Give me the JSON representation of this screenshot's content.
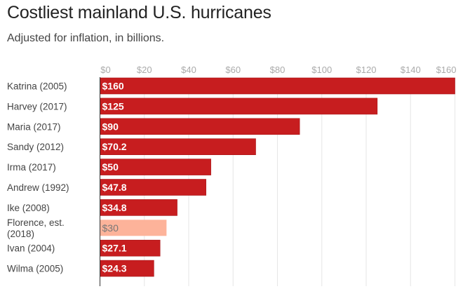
{
  "header": {
    "title": "Costliest mainland U.S. hurricanes",
    "subtitle": "Adjusted for inflation, in billions."
  },
  "chart_data": {
    "type": "bar",
    "orientation": "horizontal",
    "title": "Costliest mainland U.S. hurricanes",
    "subtitle": "Adjusted for inflation, in billions.",
    "xlabel": "",
    "ylabel": "",
    "xlim": [
      0,
      160
    ],
    "grid": true,
    "x_ticks": [
      0,
      20,
      40,
      60,
      80,
      100,
      120,
      140,
      160
    ],
    "x_tick_labels": [
      "$0",
      "$20",
      "$40",
      "$60",
      "$80",
      "$100",
      "$120",
      "$140",
      "$160"
    ],
    "categories": [
      "Katrina (2005)",
      "Harvey (2017)",
      "Maria (2017)",
      "Sandy (2012)",
      "Irma (2017)",
      "Andrew (1992)",
      "Ike (2008)",
      "Florence, est. (2018)",
      "Ivan (2004)",
      "Wilma (2005)"
    ],
    "category_lines": [
      [
        "Katrina (2005)"
      ],
      [
        "Harvey (2017)"
      ],
      [
        "Maria (2017)"
      ],
      [
        "Sandy (2012)"
      ],
      [
        "Irma (2017)"
      ],
      [
        "Andrew (1992)"
      ],
      [
        "Ike (2008)"
      ],
      [
        "Florence, est.",
        "(2018)"
      ],
      [
        "Ivan (2004)"
      ],
      [
        "Wilma (2005)"
      ]
    ],
    "values": [
      160,
      125,
      90,
      70.2,
      50,
      47.8,
      34.8,
      30,
      27.1,
      24.3
    ],
    "data_labels": [
      "$160",
      "$125",
      "$90",
      "$70.2",
      "$50",
      "$47.8",
      "$34.8",
      "$30",
      "$27.1",
      "$24.3"
    ],
    "estimated": [
      false,
      false,
      false,
      false,
      false,
      false,
      false,
      true,
      false,
      false
    ],
    "colors": {
      "bar": "#c71d1f",
      "bar_estimate": "#fdb39a",
      "grid": "#e6e6e6",
      "axis": "#333333"
    }
  }
}
